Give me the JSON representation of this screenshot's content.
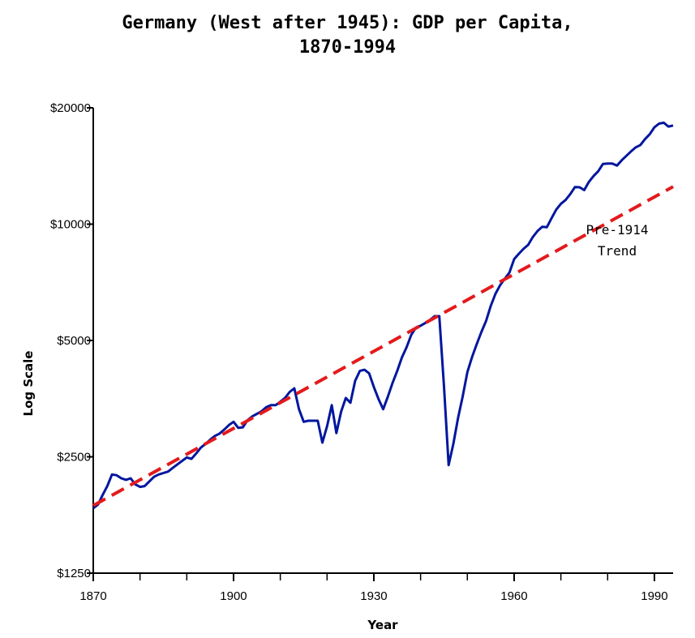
{
  "chart_data": {
    "type": "line",
    "title_lines": [
      "Germany (West after 1945): GDP per Capita,",
      "1870-1994"
    ],
    "xlabel": "Year",
    "ylabel": "Log Scale",
    "y_scale": "log",
    "xlim": [
      1870,
      1994
    ],
    "ylim": [
      1250,
      20000
    ],
    "x_ticks": [
      1870,
      1900,
      1930,
      1960,
      1990
    ],
    "x_minor_ticks": [
      1880,
      1890,
      1910,
      1920,
      1940,
      1950,
      1970,
      1980
    ],
    "y_ticks": [
      1250,
      2500,
      5000,
      10000,
      20000
    ],
    "y_tick_labels": [
      "$1250",
      "$2500",
      "$5000",
      "$10000",
      "$20000"
    ],
    "grid": false,
    "annotation": [
      "Pre-1914",
      "Trend"
    ],
    "series": [
      {
        "color": "#00169e",
        "style": "solid",
        "points": [
          [
            1870,
            1840
          ],
          [
            1871,
            1880
          ],
          [
            1872,
            1990
          ],
          [
            1873,
            2100
          ],
          [
            1874,
            2250
          ],
          [
            1875,
            2240
          ],
          [
            1876,
            2200
          ],
          [
            1877,
            2180
          ],
          [
            1878,
            2200
          ],
          [
            1879,
            2120
          ],
          [
            1880,
            2090
          ],
          [
            1881,
            2100
          ],
          [
            1882,
            2160
          ],
          [
            1883,
            2220
          ],
          [
            1884,
            2250
          ],
          [
            1885,
            2270
          ],
          [
            1886,
            2290
          ],
          [
            1887,
            2340
          ],
          [
            1888,
            2390
          ],
          [
            1889,
            2440
          ],
          [
            1890,
            2490
          ],
          [
            1891,
            2470
          ],
          [
            1892,
            2550
          ],
          [
            1893,
            2640
          ],
          [
            1894,
            2700
          ],
          [
            1895,
            2770
          ],
          [
            1896,
            2830
          ],
          [
            1897,
            2870
          ],
          [
            1898,
            2940
          ],
          [
            1899,
            3020
          ],
          [
            1900,
            3080
          ],
          [
            1901,
            2970
          ],
          [
            1902,
            2980
          ],
          [
            1903,
            3110
          ],
          [
            1904,
            3180
          ],
          [
            1905,
            3230
          ],
          [
            1906,
            3280
          ],
          [
            1907,
            3360
          ],
          [
            1908,
            3400
          ],
          [
            1909,
            3400
          ],
          [
            1910,
            3470
          ],
          [
            1911,
            3550
          ],
          [
            1912,
            3680
          ],
          [
            1913,
            3760
          ],
          [
            1914,
            3320
          ],
          [
            1915,
            3080
          ],
          [
            1916,
            3100
          ],
          [
            1917,
            3100
          ],
          [
            1918,
            3100
          ],
          [
            1919,
            2720
          ],
          [
            1920,
            3000
          ],
          [
            1921,
            3400
          ],
          [
            1922,
            2880
          ],
          [
            1923,
            3270
          ],
          [
            1924,
            3550
          ],
          [
            1925,
            3450
          ],
          [
            1926,
            3930
          ],
          [
            1927,
            4170
          ],
          [
            1928,
            4200
          ],
          [
            1929,
            4110
          ],
          [
            1930,
            3790
          ],
          [
            1931,
            3530
          ],
          [
            1932,
            3320
          ],
          [
            1933,
            3580
          ],
          [
            1934,
            3880
          ],
          [
            1935,
            4170
          ],
          [
            1936,
            4520
          ],
          [
            1937,
            4800
          ],
          [
            1938,
            5170
          ],
          [
            1939,
            5400
          ],
          [
            1940,
            5460
          ],
          [
            1941,
            5550
          ],
          [
            1942,
            5650
          ],
          [
            1943,
            5780
          ],
          [
            1944,
            5780
          ],
          [
            1945,
            3800
          ],
          [
            1946,
            2380
          ],
          [
            1947,
            2700
          ],
          [
            1948,
            3150
          ],
          [
            1949,
            3580
          ],
          [
            1950,
            4140
          ],
          [
            1951,
            4530
          ],
          [
            1952,
            4890
          ],
          [
            1953,
            5260
          ],
          [
            1954,
            5620
          ],
          [
            1955,
            6140
          ],
          [
            1956,
            6600
          ],
          [
            1957,
            6950
          ],
          [
            1958,
            7220
          ],
          [
            1959,
            7500
          ],
          [
            1960,
            8120
          ],
          [
            1961,
            8380
          ],
          [
            1962,
            8630
          ],
          [
            1963,
            8840
          ],
          [
            1964,
            9260
          ],
          [
            1965,
            9600
          ],
          [
            1966,
            9840
          ],
          [
            1967,
            9820
          ],
          [
            1968,
            10360
          ],
          [
            1969,
            10900
          ],
          [
            1970,
            11290
          ],
          [
            1971,
            11550
          ],
          [
            1972,
            11950
          ],
          [
            1973,
            12470
          ],
          [
            1974,
            12460
          ],
          [
            1975,
            12250
          ],
          [
            1976,
            12870
          ],
          [
            1977,
            13320
          ],
          [
            1978,
            13710
          ],
          [
            1979,
            14320
          ],
          [
            1980,
            14350
          ],
          [
            1981,
            14350
          ],
          [
            1982,
            14170
          ],
          [
            1983,
            14630
          ],
          [
            1984,
            15020
          ],
          [
            1985,
            15420
          ],
          [
            1986,
            15800
          ],
          [
            1987,
            16020
          ],
          [
            1988,
            16600
          ],
          [
            1989,
            17090
          ],
          [
            1990,
            17800
          ],
          [
            1991,
            18200
          ],
          [
            1992,
            18300
          ],
          [
            1993,
            17890
          ],
          [
            1994,
            18000
          ]
        ]
      },
      {
        "color": "#e31a1c",
        "style": "dashed",
        "points": [
          [
            1870,
            1870
          ],
          [
            1994,
            12500
          ]
        ]
      }
    ]
  }
}
